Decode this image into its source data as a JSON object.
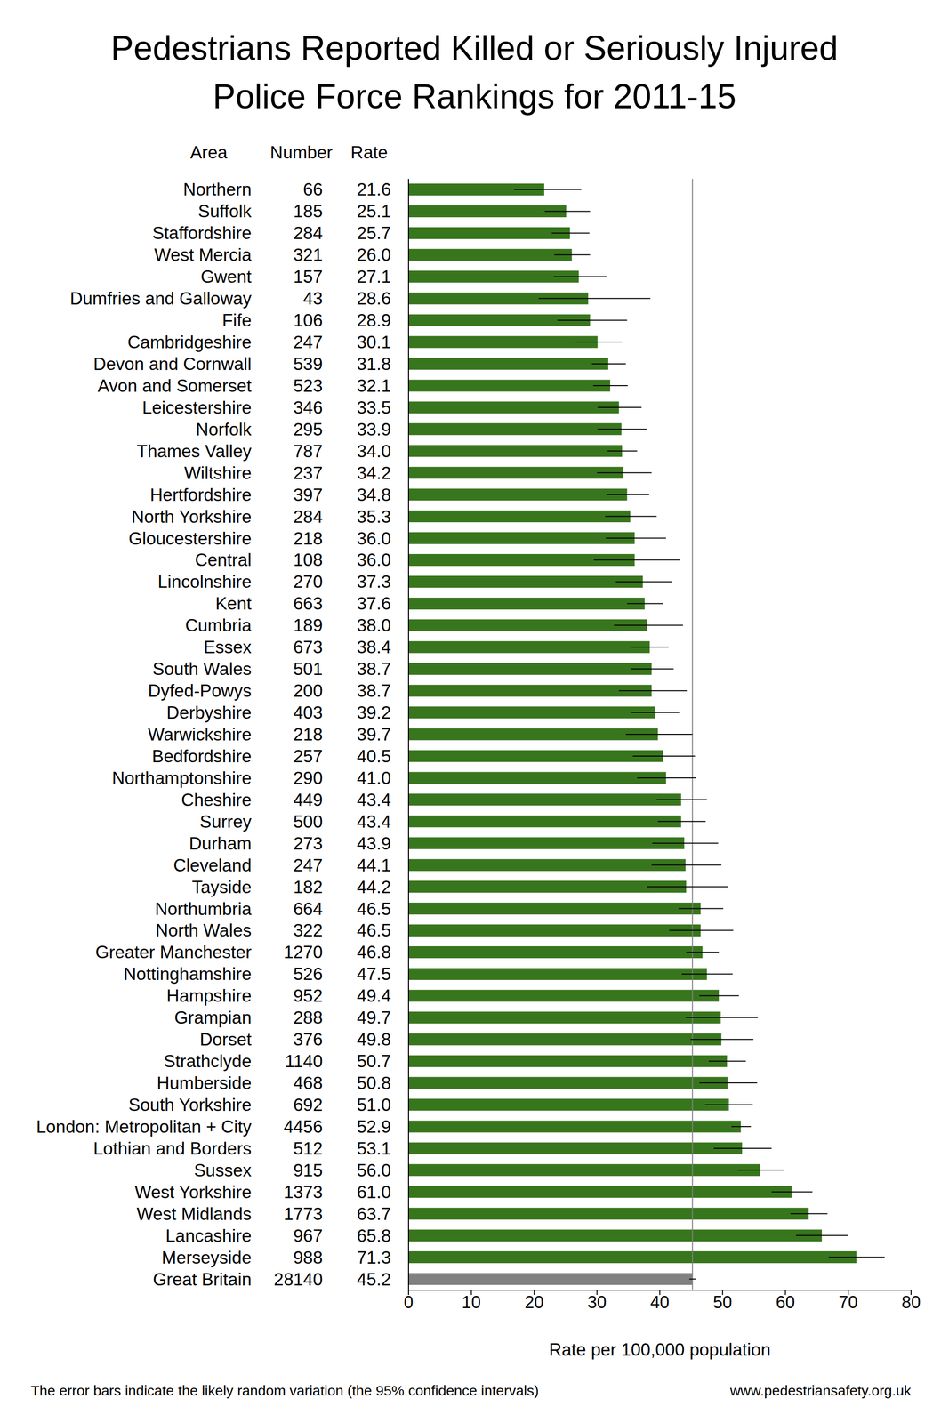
{
  "chart_data": {
    "type": "bar",
    "orientation": "horizontal",
    "title": "Pedestrians Reported Killed or Seriously Injured\nPolice Force Rankings for 2011-15",
    "columns": [
      "Area",
      "Number",
      "Rate"
    ],
    "x_label": "Rate per 100,000 population",
    "footnote": "The error bars indicate the likely random variation (the 95% confidence intervals)",
    "source": "www.pedestriansafety.org.uk",
    "categories": [
      "Northern",
      "Suffolk",
      "Staffordshire",
      "West Mercia",
      "Gwent",
      "Dumfries and Galloway",
      "Fife",
      "Cambridgeshire",
      "Devon and Cornwall",
      "Avon and Somerset",
      "Leicestershire",
      "Norfolk",
      "Thames Valley",
      "Wiltshire",
      "Hertfordshire",
      "North Yorkshire",
      "Gloucestershire",
      "Central",
      "Lincolnshire",
      "Kent",
      "Cumbria",
      "Essex",
      "South Wales",
      "Dyfed-Powys",
      "Derbyshire",
      "Warwickshire",
      "Bedfordshire",
      "Northamptonshire",
      "Cheshire",
      "Surrey",
      "Durham",
      "Cleveland",
      "Tayside",
      "Northumbria",
      "North Wales",
      "Greater Manchester",
      "Nottinghamshire",
      "Hampshire",
      "Grampian",
      "Dorset",
      "Strathclyde",
      "Humberside",
      "South Yorkshire",
      "London: Metropolitan + City",
      "Lothian and Borders",
      "Sussex",
      "West Yorkshire",
      "West Midlands",
      "Lancashire",
      "Merseyside",
      "Great Britain"
    ],
    "numbers": [
      66,
      185,
      284,
      321,
      157,
      43,
      106,
      247,
      539,
      523,
      346,
      295,
      787,
      237,
      397,
      284,
      218,
      108,
      270,
      663,
      189,
      673,
      501,
      200,
      403,
      218,
      257,
      290,
      449,
      500,
      273,
      247,
      182,
      664,
      322,
      1270,
      526,
      952,
      288,
      376,
      1140,
      468,
      692,
      4456,
      512,
      915,
      1373,
      1773,
      967,
      988,
      28140
    ],
    "values": [
      21.6,
      25.1,
      25.7,
      26.0,
      27.1,
      28.6,
      28.9,
      30.1,
      31.8,
      32.1,
      33.5,
      33.9,
      34.0,
      34.2,
      34.8,
      35.3,
      36.0,
      36.0,
      37.3,
      37.6,
      38.0,
      38.4,
      38.7,
      38.7,
      39.2,
      39.7,
      40.5,
      41.0,
      43.4,
      43.4,
      43.9,
      44.1,
      44.2,
      46.5,
      46.5,
      46.8,
      47.5,
      49.4,
      49.7,
      49.8,
      50.7,
      50.8,
      51.0,
      52.9,
      53.1,
      56.0,
      61.0,
      63.7,
      65.8,
      71.3,
      45.2
    ],
    "value_labels": [
      "21.6",
      "25.1",
      "25.7",
      "26.0",
      "27.1",
      "28.6",
      "28.9",
      "30.1",
      "31.8",
      "32.1",
      "33.5",
      "33.9",
      "34.0",
      "34.2",
      "34.8",
      "35.3",
      "36.0",
      "36.0",
      "37.3",
      "37.6",
      "38.0",
      "38.4",
      "38.7",
      "38.7",
      "39.2",
      "39.7",
      "40.5",
      "41.0",
      "43.4",
      "43.4",
      "43.9",
      "44.1",
      "44.2",
      "46.5",
      "46.5",
      "46.8",
      "47.5",
      "49.4",
      "49.7",
      "49.8",
      "50.7",
      "50.8",
      "51.0",
      "52.9",
      "53.1",
      "56.0",
      "61.0",
      "63.7",
      "65.8",
      "71.3",
      "45.2"
    ],
    "errors": [
      [
        4.8,
        5.9
      ],
      [
        3.4,
        3.8
      ],
      [
        2.9,
        3.1
      ],
      [
        2.8,
        2.9
      ],
      [
        4.0,
        4.4
      ],
      [
        7.9,
        9.9
      ],
      [
        5.2,
        5.9
      ],
      [
        3.6,
        3.9
      ],
      [
        2.6,
        2.8
      ],
      [
        2.7,
        2.8
      ],
      [
        3.4,
        3.6
      ],
      [
        3.8,
        4.0
      ],
      [
        2.3,
        2.4
      ],
      [
        4.2,
        4.5
      ],
      [
        3.3,
        3.5
      ],
      [
        4.0,
        4.2
      ],
      [
        4.6,
        5.0
      ],
      [
        6.5,
        7.2
      ],
      [
        4.3,
        4.6
      ],
      [
        2.8,
        2.9
      ],
      [
        5.3,
        5.7
      ],
      [
        2.9,
        3.0
      ],
      [
        3.3,
        3.5
      ],
      [
        5.2,
        5.6
      ],
      [
        3.7,
        3.9
      ],
      [
        5.1,
        5.5
      ],
      [
        4.8,
        5.1
      ],
      [
        4.6,
        4.8
      ],
      [
        3.9,
        4.1
      ],
      [
        3.7,
        3.9
      ],
      [
        5.1,
        5.4
      ],
      [
        5.4,
        5.7
      ],
      [
        6.2,
        6.7
      ],
      [
        3.5,
        3.6
      ],
      [
        5.0,
        5.2
      ],
      [
        2.6,
        2.6
      ],
      [
        4.0,
        4.1
      ],
      [
        3.1,
        3.2
      ],
      [
        5.6,
        5.9
      ],
      [
        4.9,
        5.1
      ],
      [
        2.9,
        3.0
      ],
      [
        4.5,
        4.7
      ],
      [
        3.8,
        3.8
      ],
      [
        1.5,
        1.6
      ],
      [
        4.5,
        4.7
      ],
      [
        3.6,
        3.7
      ],
      [
        3.2,
        3.3
      ],
      [
        2.9,
        3.0
      ],
      [
        4.1,
        4.2
      ],
      [
        4.4,
        4.5
      ],
      [
        0.5,
        0.5
      ]
    ],
    "colors": [
      "#38761d",
      "#38761d",
      "#38761d",
      "#38761d",
      "#38761d",
      "#38761d",
      "#38761d",
      "#38761d",
      "#38761d",
      "#38761d",
      "#38761d",
      "#38761d",
      "#38761d",
      "#38761d",
      "#38761d",
      "#38761d",
      "#38761d",
      "#38761d",
      "#38761d",
      "#38761d",
      "#38761d",
      "#38761d",
      "#38761d",
      "#38761d",
      "#38761d",
      "#38761d",
      "#38761d",
      "#38761d",
      "#38761d",
      "#38761d",
      "#38761d",
      "#38761d",
      "#38761d",
      "#38761d",
      "#38761d",
      "#38761d",
      "#38761d",
      "#38761d",
      "#38761d",
      "#38761d",
      "#38761d",
      "#38761d",
      "#38761d",
      "#38761d",
      "#38761d",
      "#38761d",
      "#38761d",
      "#38761d",
      "#38761d",
      "#38761d",
      "#808080"
    ],
    "reference_line": 45.2,
    "xlim": [
      0,
      80
    ],
    "xticks": [
      0,
      10,
      20,
      30,
      40,
      50,
      60,
      70,
      80
    ],
    "grid": false
  }
}
